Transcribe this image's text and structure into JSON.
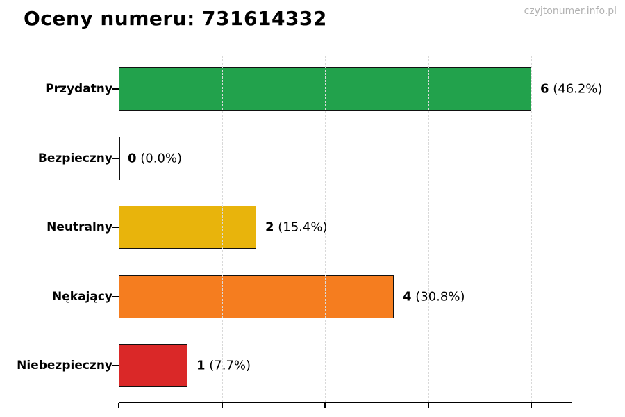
{
  "page": {
    "watermark": "czyjtonumer.info.pl"
  },
  "chart_data": {
    "type": "bar",
    "orientation": "horizontal",
    "title": "Oceny numeru: 731614332",
    "categories": [
      "Przydatny",
      "Bezpieczny",
      "Neutralny",
      "Nękający",
      "Niebezpieczny"
    ],
    "values": [
      6,
      0,
      2,
      4,
      1
    ],
    "percentages": [
      46.2,
      0.0,
      15.4,
      30.8,
      7.7
    ],
    "bars": [
      {
        "category": "Przydatny",
        "value": 6,
        "count_label": "6",
        "percent_label": "(46.2%)",
        "color": "#22a24c"
      },
      {
        "category": "Bezpieczny",
        "value": 0,
        "count_label": "0",
        "percent_label": "(0.0%)",
        "color": "#22a24c"
      },
      {
        "category": "Neutralny",
        "value": 2,
        "count_label": "2",
        "percent_label": "(15.4%)",
        "color": "#e8b40c"
      },
      {
        "category": "Nękający",
        "value": 4,
        "count_label": "4",
        "percent_label": "(30.8%)",
        "color": "#f57d1f"
      },
      {
        "category": "Niebezpieczny",
        "value": 1,
        "count_label": "1",
        "percent_label": "(7.7%)",
        "color": "#da2828"
      }
    ],
    "xlabel": "",
    "ylabel": "",
    "xlim": [
      0,
      6.6
    ],
    "xticks": [
      0,
      1.5,
      3,
      4.5,
      6
    ],
    "xtick_labels_visible": false,
    "grid": "dashed-vertical",
    "legend": "none",
    "bar_border_color": "#111111",
    "gridline_color": "#d9d9d9",
    "axis_color": "#000000",
    "title_color": "#000000",
    "watermark_color": "#b2b2b2"
  }
}
